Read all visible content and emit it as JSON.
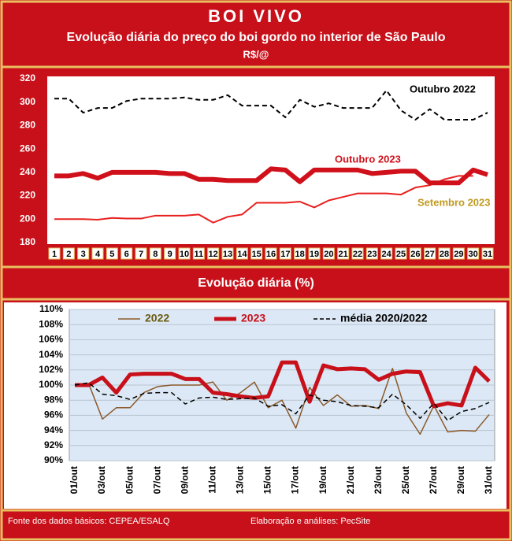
{
  "header": {
    "title": "BOI VIVO",
    "subtitle": "Evolução diária do preço do boi gordo no interior de São Paulo",
    "unit": "R$/@"
  },
  "chart_data": [
    {
      "type": "line",
      "categories": [
        "1",
        "2",
        "3",
        "4",
        "5",
        "6",
        "7",
        "8",
        "9",
        "10",
        "11",
        "12",
        "13",
        "14",
        "15",
        "16",
        "17",
        "18",
        "19",
        "20",
        "21",
        "22",
        "23",
        "24",
        "25",
        "26",
        "27",
        "28",
        "29",
        "30",
        "31"
      ],
      "ylim": [
        180,
        320
      ],
      "yticks": [
        180,
        200,
        220,
        240,
        260,
        280,
        300,
        320
      ],
      "grid": false,
      "series": [
        {
          "name": "Outubro 2022",
          "color": "#000000",
          "label_color": "#000000",
          "dash": true,
          "width": 2,
          "values": [
            303,
            303,
            291,
            295,
            295,
            301,
            303,
            303,
            303,
            304,
            302,
            302,
            306,
            297,
            297,
            297,
            287,
            302,
            296,
            299,
            295,
            295,
            295,
            310,
            293,
            285,
            294,
            285,
            285,
            285,
            291
          ]
        },
        {
          "name": "Setembro 2023",
          "color": "#e8201e",
          "label_color": "#c09a20",
          "dash": false,
          "width": 2,
          "values": [
            200,
            200,
            200,
            199.5,
            201,
            200.5,
            200.5,
            203,
            203,
            203,
            204,
            197,
            202,
            204,
            214,
            214,
            214,
            215,
            210,
            216,
            219,
            222,
            222,
            222,
            221,
            227,
            229,
            234,
            237,
            237,
            null
          ]
        },
        {
          "name": "Outubro 2023",
          "color": "#d0101a",
          "label_color": "#d0101a",
          "dash": false,
          "width": 6,
          "values": [
            237,
            237,
            239,
            235,
            240,
            240,
            240,
            240,
            239,
            239,
            234,
            234,
            233,
            233,
            233,
            243,
            242,
            232,
            242,
            242,
            242,
            242,
            239,
            240,
            241,
            241,
            231,
            231,
            231,
            242,
            238
          ]
        }
      ]
    },
    {
      "type": "line",
      "title": "Evolução diária (%)",
      "categories": [
        "01/out",
        null,
        "03/out",
        null,
        "05/out",
        null,
        "07/out",
        null,
        "09/out",
        null,
        "11/out",
        null,
        "13/out",
        null,
        "15/out",
        null,
        "17/out",
        null,
        "19/out",
        null,
        "21/out",
        null,
        "23/out",
        null,
        "25/out",
        null,
        "27/out",
        null,
        "29/out",
        null,
        "31/out"
      ],
      "ylim": [
        90,
        110
      ],
      "yticks": [
        {
          "value": 90,
          "label": "90%"
        },
        {
          "value": 92,
          "label": "92%"
        },
        {
          "value": 94,
          "label": "94%"
        },
        {
          "value": 96,
          "label": "96%"
        },
        {
          "value": 98,
          "label": "98%"
        },
        {
          "value": 100,
          "label": "100%"
        },
        {
          "value": 102,
          "label": "102%"
        },
        {
          "value": 104,
          "label": "104%"
        },
        {
          "value": 106,
          "label": "106%"
        },
        {
          "value": 108,
          "label": "108%"
        },
        {
          "value": 110,
          "label": "110%"
        }
      ],
      "grid": true,
      "legend": "top",
      "series": [
        {
          "name": "2022",
          "color": "#8b5a2b",
          "label_color": "#6b5a10",
          "dash": false,
          "width": 1.5,
          "values": [
            100,
            100.2,
            95.5,
            97,
            97,
            99,
            99.8,
            100,
            100,
            100,
            100.4,
            98,
            99,
            100.4,
            97,
            98,
            94.3,
            99.7,
            97.3,
            98.7,
            97.2,
            97.3,
            96.9,
            102.2,
            96.3,
            93.5,
            97.3,
            93.8,
            94,
            93.9,
            96.1
          ]
        },
        {
          "name": "2023",
          "color": "#c8101a",
          "label_color": "#c8101a",
          "dash": false,
          "width": 5,
          "values": [
            100,
            100,
            101,
            99,
            101.4,
            101.5,
            101.5,
            101.5,
            100.8,
            100.8,
            99,
            98.8,
            98.5,
            98.3,
            98.5,
            103,
            103,
            97.8,
            102.6,
            102.1,
            102.2,
            102.1,
            100.7,
            101.5,
            101.8,
            101.7,
            97.2,
            97.6,
            97.3,
            102.3,
            100.5
          ]
        },
        {
          "name": "média 2020/2022",
          "color": "#000000",
          "label_color": "#000000",
          "dash": true,
          "width": 1.5,
          "values": [
            100,
            100.3,
            98.8,
            98.6,
            98.1,
            98.9,
            99,
            99,
            97.5,
            98.3,
            98.4,
            98.1,
            98.2,
            98.3,
            97.2,
            97.4,
            96.2,
            98.7,
            98,
            97.8,
            97.3,
            97.2,
            97,
            98.8,
            97.4,
            95.6,
            97.6,
            95.3,
            96.5,
            96.9,
            97.7
          ]
        }
      ]
    }
  ],
  "footer": {
    "source": "Fonte dos dados básicos: CEPEA/ESALQ",
    "credits": "Elaboração e análises: PecSite"
  }
}
